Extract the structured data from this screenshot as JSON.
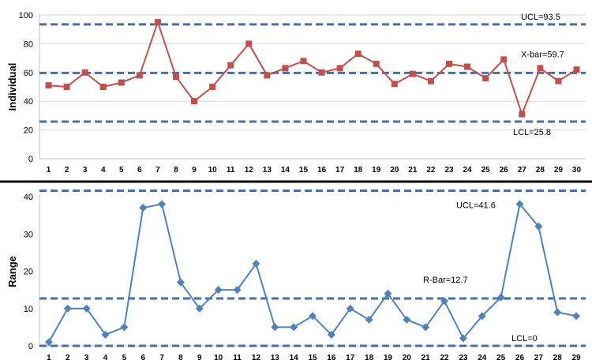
{
  "colors": {
    "individual_series": "#c0504d",
    "range_series": "#4f81bd",
    "control_lines": "#4a6fa5",
    "divider": "#000000"
  },
  "chart_data": [
    {
      "type": "line",
      "ylabel": "Individual",
      "ylim": [
        0,
        100
      ],
      "yticks": [
        0,
        20,
        40,
        60,
        80,
        100
      ],
      "categories": [
        "1",
        "2",
        "3",
        "4",
        "5",
        "6",
        "7",
        "8",
        "9",
        "10",
        "11",
        "12",
        "13",
        "14",
        "15",
        "16",
        "17",
        "18",
        "19",
        "20",
        "21",
        "22",
        "23",
        "24",
        "25",
        "26",
        "27",
        "28",
        "29",
        "30"
      ],
      "series": [
        {
          "values": [
            51,
            50,
            60,
            50,
            53,
            58,
            95,
            57,
            40,
            50,
            65,
            80,
            58,
            63,
            68,
            60,
            63,
            73,
            66,
            52,
            59,
            54,
            66,
            64,
            56,
            69,
            31,
            63,
            54,
            62
          ]
        }
      ],
      "marker": "square",
      "control_lines": [
        {
          "label": "UCL=93.5",
          "value": 93.5
        },
        {
          "label": "X-bar=59.7",
          "value": 59.7
        },
        {
          "label": "LCL=25.8",
          "value": 25.8
        }
      ],
      "grid": true
    },
    {
      "type": "line",
      "ylabel": "Range",
      "ylim": [
        0,
        40
      ],
      "yticks": [
        0,
        10,
        20,
        30,
        40
      ],
      "categories": [
        "1",
        "2",
        "3",
        "4",
        "5",
        "6",
        "7",
        "8",
        "9",
        "10",
        "11",
        "12",
        "13",
        "14",
        "15",
        "16",
        "17",
        "18",
        "19",
        "20",
        "21",
        "22",
        "23",
        "24",
        "25",
        "26",
        "27",
        "28",
        "29"
      ],
      "series": [
        {
          "values": [
            1,
            10,
            10,
            3,
            5,
            37,
            38,
            17,
            10,
            15,
            15,
            22,
            5,
            5,
            8,
            3,
            10,
            7,
            14,
            7,
            5,
            12,
            2,
            8,
            13,
            38,
            32,
            9,
            8
          ]
        }
      ],
      "marker": "diamond",
      "control_lines": [
        {
          "label": "UCL=41.6",
          "value": 41.6
        },
        {
          "label": "R-Bar=12.7",
          "value": 12.7
        },
        {
          "label": "LCL=0",
          "value": 0
        }
      ],
      "grid": false
    }
  ]
}
